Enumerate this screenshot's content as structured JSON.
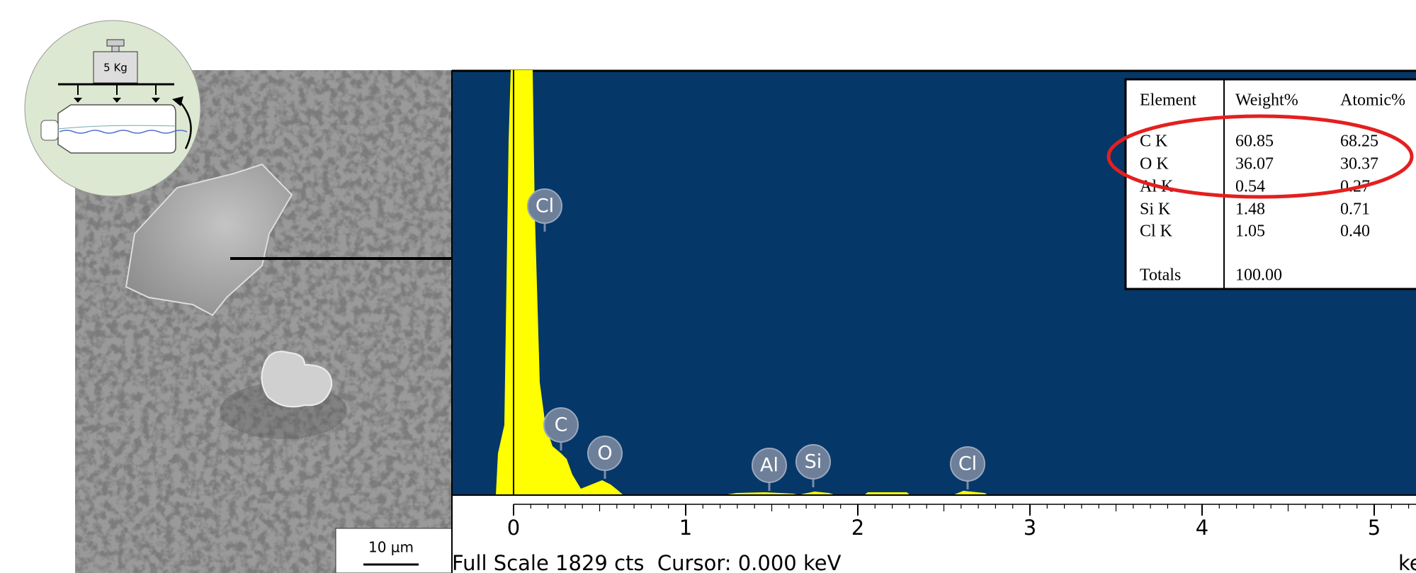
{
  "inset": {
    "weight_label": "5 Kg"
  },
  "sem": {
    "scale_bar": "10 µm"
  },
  "spectrum": {
    "peak_labels": [
      "Cl",
      "C",
      "O",
      "Al",
      "Si",
      "Cl"
    ],
    "axis_ticks": [
      "0",
      "1",
      "2",
      "3",
      "4",
      "5"
    ],
    "axis_unit": "keV",
    "status": "Full Scale 1829 cts  Cursor: 0.000 keV"
  },
  "table": {
    "header": [
      "Element",
      "Weight%",
      "Atomic%"
    ],
    "rows": [
      [
        "C K",
        "60.85",
        "68.25"
      ],
      [
        "O K",
        "36.07",
        "30.37"
      ],
      [
        "Al K",
        "0.54",
        "0.27"
      ],
      [
        "Si K",
        "1.48",
        "0.71"
      ],
      [
        "Cl K",
        "1.05",
        "0.40"
      ]
    ],
    "totals": [
      "Totals",
      "100.00"
    ]
  }
}
